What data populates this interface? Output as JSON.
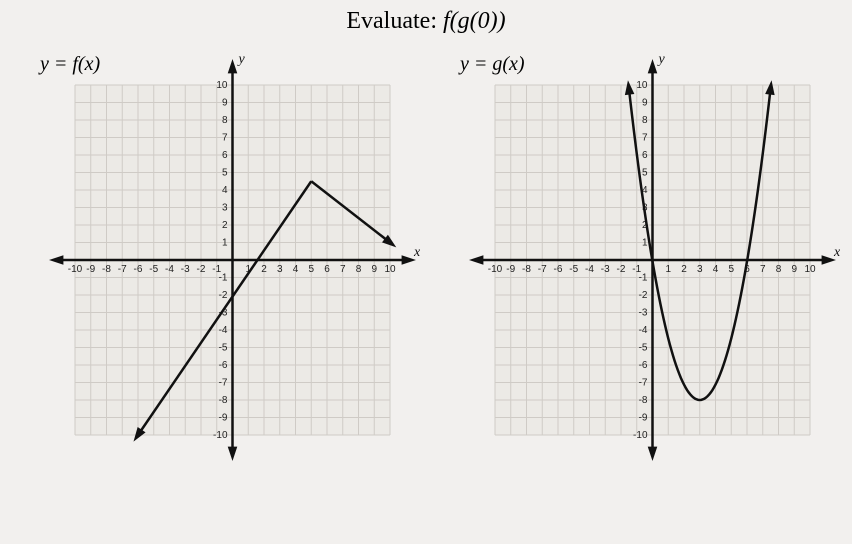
{
  "title_prefix": "Evaluate: ",
  "title_expr": "f(g(0))",
  "left_chart": {
    "label": "y = f(x)",
    "type": "line",
    "xlim": [
      -10,
      10
    ],
    "ylim": [
      -10,
      10
    ],
    "tick_step": 1,
    "x_axis_label": "x",
    "y_axis_label": "y",
    "grid_color": "#cfcbc6",
    "axis_color": "#111111",
    "line_color": "#111111",
    "background_color": "#eceae6",
    "segments": [
      {
        "from": [
          -6,
          -10
        ],
        "to": [
          5,
          4.5
        ],
        "start_arrow": true
      },
      {
        "from": [
          5,
          4.5
        ],
        "to": [
          10,
          1
        ],
        "end_arrow": true
      }
    ]
  },
  "right_chart": {
    "label": "y = g(x)",
    "type": "parabola",
    "xlim": [
      -10,
      10
    ],
    "ylim": [
      -10,
      10
    ],
    "tick_step": 1,
    "x_axis_label": "x",
    "y_axis_label": "y",
    "grid_color": "#cfcbc6",
    "axis_color": "#111111",
    "line_color": "#111111",
    "background_color": "#eceae6",
    "parabola": {
      "vertex_x": 3,
      "vertex_y": -8,
      "a": 0.88,
      "x_start": -1.5,
      "x_end": 7.5,
      "end_arrows": true
    }
  }
}
